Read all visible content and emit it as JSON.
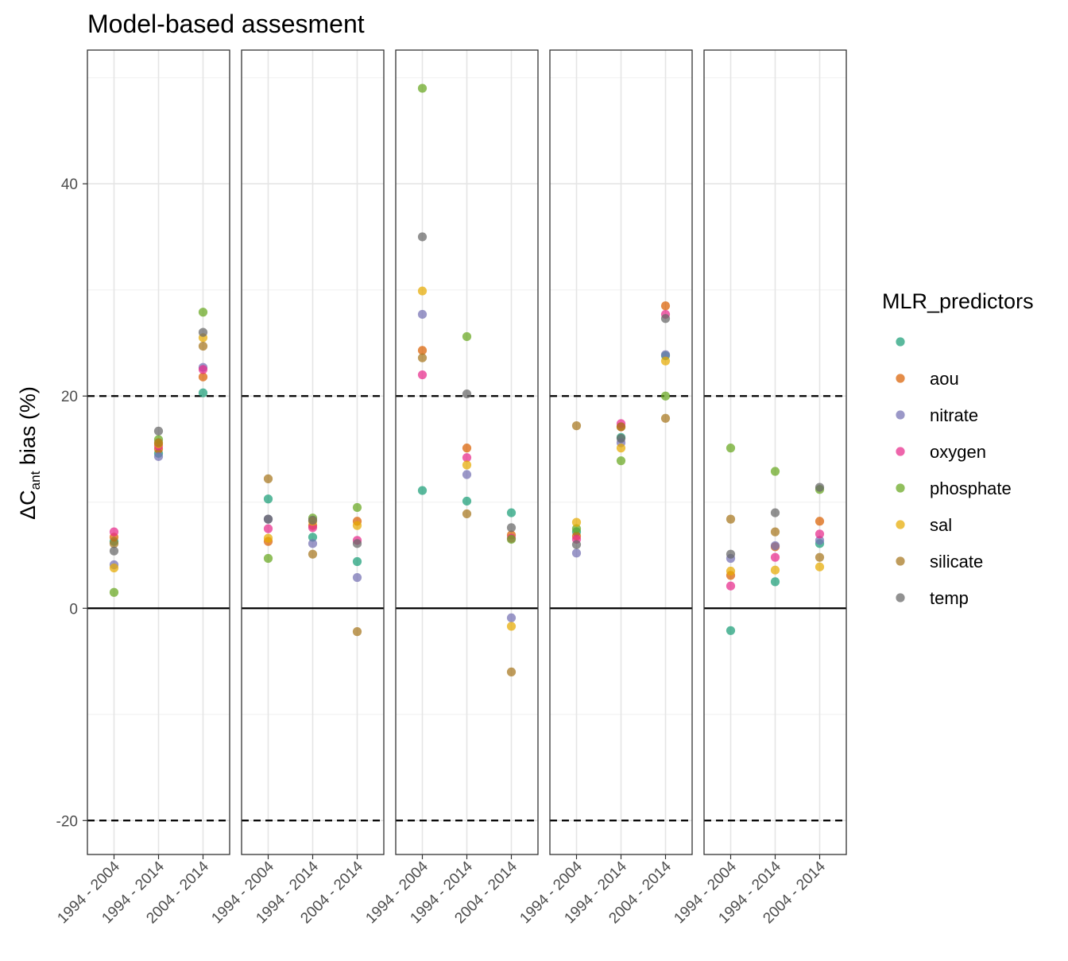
{
  "chart_data": {
    "type": "scatter",
    "title": "Model-based assesment",
    "ylabel": "ΔCant bias (%)",
    "ylabel_parts": {
      "delta": "Δ",
      "c": "C",
      "sub": "ant",
      "rest": " bias (%)"
    },
    "ylim": [
      -23.2,
      52.6
    ],
    "yticks": [
      -20,
      0,
      20,
      40
    ],
    "ytick_labels": [
      "-20",
      "0",
      "20",
      "40"
    ],
    "reference_lines": [
      {
        "y": 0,
        "style": "solid"
      },
      {
        "y": 20,
        "style": "dashed"
      },
      {
        "y": -20,
        "style": "dashed"
      }
    ],
    "categories": [
      "1994 - 2004",
      "1994 - 2014",
      "2004 - 2014"
    ],
    "grid": true,
    "legend": {
      "title": "MLR_predictors",
      "position": "right",
      "entries": [
        {
          "key": "blank",
          "label": "",
          "color": "#1B9E77"
        },
        {
          "key": "aou",
          "label": "aou",
          "color": "#D95F02"
        },
        {
          "key": "nitrate",
          "label": "nitrate",
          "color": "#7570B3"
        },
        {
          "key": "oxygen",
          "label": "oxygen",
          "color": "#E7298A"
        },
        {
          "key": "phosphate",
          "label": "phosphate",
          "color": "#66A61E"
        },
        {
          "key": "sal",
          "label": "sal",
          "color": "#E6AB02"
        },
        {
          "key": "silicate",
          "label": "silicate",
          "color": "#A6761D"
        },
        {
          "key": "temp",
          "label": "temp",
          "color": "#666666"
        }
      ]
    },
    "panels": [
      {
        "values": {
          "blank": [
            6.3,
            14.6,
            20.3
          ],
          "aou": [
            6.7,
            15.0,
            21.8
          ],
          "nitrate": [
            4.1,
            14.3,
            22.7
          ],
          "oxygen": [
            7.2,
            15.3,
            22.5
          ],
          "phosphate": [
            1.5,
            15.9,
            27.9
          ],
          "sal": [
            3.8,
            15.5,
            25.5
          ],
          "silicate": [
            6.1,
            15.6,
            24.7
          ],
          "temp": [
            5.4,
            16.7,
            26.0
          ]
        }
      },
      {
        "values": {
          "blank": [
            10.3,
            6.7,
            4.4
          ],
          "aou": [
            6.3,
            7.8,
            8.2
          ],
          "nitrate": [
            8.4,
            6.1,
            2.9
          ],
          "oxygen": [
            7.5,
            7.6,
            6.4
          ],
          "phosphate": [
            4.7,
            8.5,
            9.5
          ],
          "sal": [
            6.6,
            8.2,
            7.8
          ],
          "silicate": [
            12.2,
            5.1,
            -2.2
          ],
          "temp": [
            8.4,
            8.3,
            6.1
          ]
        }
      },
      {
        "values": {
          "blank": [
            11.1,
            10.1,
            9.0
          ],
          "aou": [
            24.3,
            15.1,
            6.9
          ],
          "nitrate": [
            27.7,
            12.6,
            -0.9
          ],
          "oxygen": [
            22.0,
            14.2,
            6.6
          ],
          "phosphate": [
            49.0,
            25.6,
            6.5
          ],
          "sal": [
            29.9,
            13.5,
            -1.7
          ],
          "silicate": [
            23.6,
            8.9,
            -6.0
          ],
          "temp": [
            35.0,
            20.2,
            7.6
          ]
        }
      },
      {
        "values": {
          "blank": [
            7.2,
            16.1,
            23.8
          ],
          "aou": [
            6.8,
            17.1,
            28.5
          ],
          "nitrate": [
            5.2,
            15.6,
            23.9
          ],
          "oxygen": [
            6.5,
            17.4,
            27.7
          ],
          "phosphate": [
            7.5,
            13.9,
            20.0
          ],
          "sal": [
            8.1,
            15.1,
            23.3
          ],
          "silicate": [
            17.2,
            17.1,
            17.9
          ],
          "temp": [
            6.0,
            16.0,
            27.3
          ]
        }
      },
      {
        "values": {
          "blank": [
            -2.1,
            2.5,
            6.1
          ],
          "aou": [
            3.1,
            5.8,
            8.2
          ],
          "nitrate": [
            4.7,
            5.9,
            6.4
          ],
          "oxygen": [
            2.1,
            4.8,
            7.0
          ],
          "phosphate": [
            15.1,
            12.9,
            11.2
          ],
          "sal": [
            3.5,
            3.6,
            3.9
          ],
          "silicate": [
            8.4,
            7.2,
            4.8
          ],
          "temp": [
            5.1,
            9.0,
            11.4
          ]
        }
      }
    ]
  }
}
